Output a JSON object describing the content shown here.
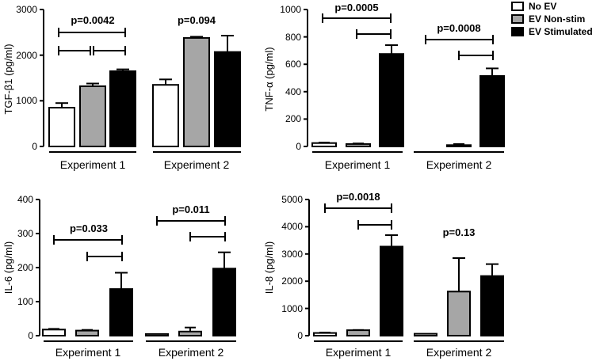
{
  "legend": [
    {
      "label": "No EV",
      "color": "#ffffff"
    },
    {
      "label": "EV Non-stim",
      "color": "#a6a6a6"
    },
    {
      "label": "EV Stimulated",
      "color": "#000000"
    }
  ],
  "chart_data": [
    {
      "type": "bar",
      "ylabel": "TGF-β1 (pg/ml)",
      "ylim": [
        0,
        3000
      ],
      "yticks": [
        0,
        1000,
        2000,
        3000
      ],
      "groups": [
        "Experiment 1",
        "Experiment 2"
      ],
      "series": [
        {
          "name": "No EV",
          "values": [
            850,
            1350
          ],
          "errors": [
            50,
            120
          ]
        },
        {
          "name": "EV Non-stim",
          "values": [
            1320,
            2380
          ],
          "errors": [
            60,
            25
          ]
        },
        {
          "name": "EV Stimulated",
          "values": [
            1650,
            2070
          ],
          "errors": [
            40,
            360
          ]
        }
      ],
      "annotations": [
        {
          "label": "p=0.0042",
          "group": 0
        },
        {
          "label": "p=0.094",
          "group": 1
        }
      ]
    },
    {
      "type": "bar",
      "ylabel": "TNF-α (pg/ml)",
      "ylim": [
        0,
        1000
      ],
      "yticks": [
        0,
        200,
        400,
        600,
        800,
        1000
      ],
      "groups": [
        "Experiment 1",
        "Experiment 2"
      ],
      "series": [
        {
          "name": "No EV",
          "values": [
            25,
            0
          ],
          "errors": [
            4,
            0
          ]
        },
        {
          "name": "EV Non-stim",
          "values": [
            18,
            10
          ],
          "errors": [
            4,
            8
          ]
        },
        {
          "name": "EV Stimulated",
          "values": [
            675,
            515
          ],
          "errors": [
            65,
            55
          ]
        }
      ],
      "annotations": [
        {
          "label": "p=0.0005",
          "group": 0
        },
        {
          "label": "p=0.0008",
          "group": 1
        }
      ]
    },
    {
      "type": "bar",
      "ylabel": "IL-6 (pg/ml)",
      "ylim": [
        0,
        400
      ],
      "yticks": [
        0,
        100,
        200,
        300,
        400
      ],
      "groups": [
        "Experiment 1",
        "Experiment 2"
      ],
      "series": [
        {
          "name": "No EV",
          "values": [
            18,
            5
          ],
          "errors": [
            2,
            1
          ]
        },
        {
          "name": "EV Non-stim",
          "values": [
            15,
            12
          ],
          "errors": [
            2,
            12
          ]
        },
        {
          "name": "EV Stimulated",
          "values": [
            137,
            197
          ],
          "errors": [
            48,
            48
          ]
        }
      ],
      "annotations": [
        {
          "label": "p=0.033",
          "group": 0
        },
        {
          "label": "p=0.011",
          "group": 1
        }
      ]
    },
    {
      "type": "bar",
      "ylabel": "IL-8 (pg/ml)",
      "ylim": [
        0,
        5000
      ],
      "yticks": [
        0,
        1000,
        2000,
        3000,
        4000,
        5000
      ],
      "groups": [
        "Experiment 1",
        "Experiment 2"
      ],
      "series": [
        {
          "name": "No EV",
          "values": [
            100,
            70
          ],
          "errors": [
            15,
            10
          ]
        },
        {
          "name": "EV Non-stim",
          "values": [
            200,
            1620
          ],
          "errors": [
            10,
            1230
          ]
        },
        {
          "name": "EV Stimulated",
          "values": [
            3270,
            2190
          ],
          "errors": [
            420,
            440
          ]
        }
      ],
      "annotations": [
        {
          "label": "p=0.0018",
          "group": 0
        },
        {
          "label": "p=0.13",
          "group": 1
        }
      ]
    }
  ]
}
